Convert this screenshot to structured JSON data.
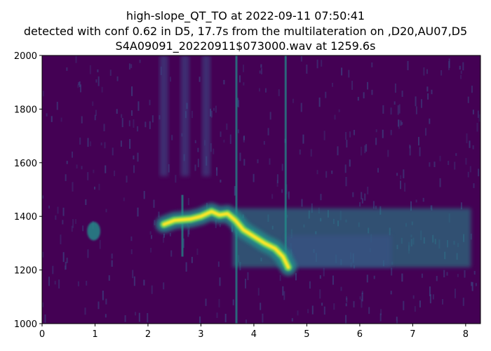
{
  "chart_data": {
    "type": "heatmap",
    "title_lines": [
      "high-slope_QT_TO at 2022-09-11 07:50:41",
      "detected with conf 0.62 in D5, 17.7s from the multilateration on ,D20,AU07,D5",
      "S4A09091_20220911$073000.wav at 1259.6s"
    ],
    "xlabel": "",
    "ylabel": "",
    "xlim": [
      0,
      8.28
    ],
    "ylim": [
      1000,
      2000
    ],
    "xticks": [
      "0",
      "1",
      "2",
      "3",
      "4",
      "5",
      "6",
      "7",
      "8"
    ],
    "yticks": [
      "1000",
      "1200",
      "1400",
      "1600",
      "1800",
      "2000"
    ],
    "colormap": "viridis",
    "colors": {
      "background": "#440154",
      "low": "#3b528b",
      "mid": "#21918c",
      "high": "#5ec962",
      "peak": "#fde725"
    },
    "grid": false,
    "features": {
      "main_contour": [
        [
          2.3,
          1370
        ],
        [
          2.5,
          1385
        ],
        [
          2.8,
          1390
        ],
        [
          3.0,
          1400
        ],
        [
          3.2,
          1418
        ],
        [
          3.35,
          1405
        ],
        [
          3.5,
          1410
        ],
        [
          3.65,
          1385
        ],
        [
          3.8,
          1350
        ],
        [
          4.0,
          1325
        ],
        [
          4.2,
          1300
        ],
        [
          4.4,
          1280
        ],
        [
          4.55,
          1250
        ],
        [
          4.65,
          1210
        ]
      ],
      "diffuse_band": {
        "t": [
          3.6,
          8.1
        ],
        "f": [
          1210,
          1430
        ]
      },
      "small_blob": {
        "t": [
          0.85,
          1.1
        ],
        "f": [
          1310,
          1380
        ]
      },
      "vertical_streaks": [
        3.67,
        4.6,
        2.65
      ],
      "upper_streaks": [
        2.3,
        2.7,
        3.1
      ]
    }
  }
}
